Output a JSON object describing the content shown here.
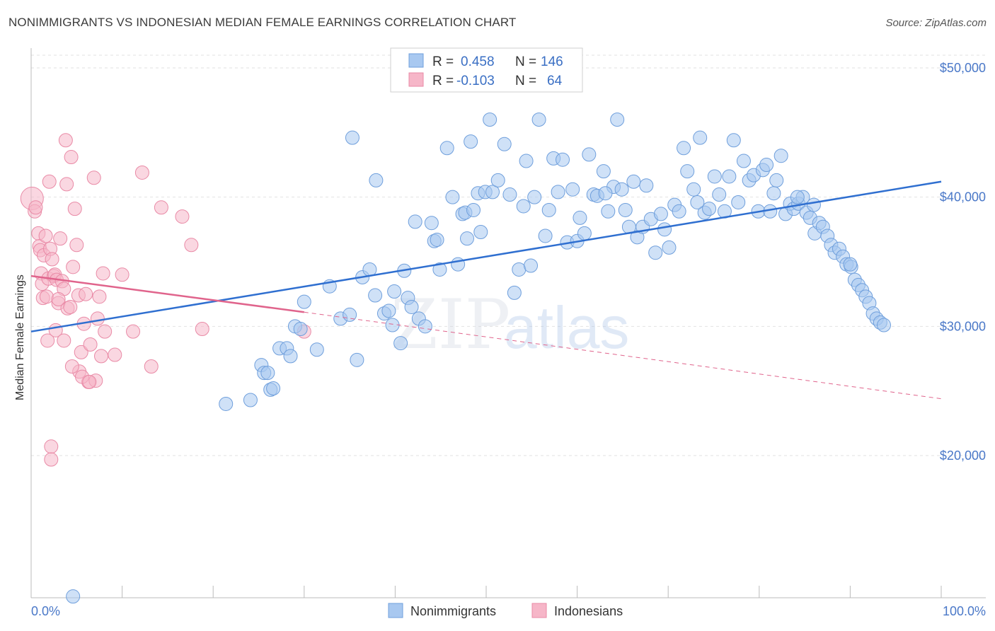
{
  "title": "NONIMMIGRANTS VS INDONESIAN MEDIAN FEMALE EARNINGS CORRELATION CHART",
  "source": "Source: ZipAtlas.com",
  "watermark": {
    "zip": "ZIP",
    "atlas": "atlas"
  },
  "legend": {
    "r_label": "R =",
    "n_label": "N =",
    "series": [
      {
        "r": "0.458",
        "n": "146",
        "color": "#a8c8f0"
      },
      {
        "r": "-0.103",
        "n": "64",
        "color": "#f6b6c8"
      }
    ]
  },
  "bottom_legend": [
    "Nonimmigrants",
    "Indonesians"
  ],
  "colors": {
    "blue_fill": "#a8c8f0",
    "blue_stroke": "#6f9fdc",
    "blue_line": "#2f6fd0",
    "pink_fill": "#f6b6c8",
    "pink_stroke": "#e98aa6",
    "pink_line": "#e0648c",
    "axis_text": "#4a78c8"
  },
  "chart_data": {
    "type": "scatter",
    "title": "NONIMMIGRANTS VS INDONESIAN MEDIAN FEMALE EARNINGS CORRELATION CHART",
    "xlabel": "",
    "ylabel": "Median Female Earnings",
    "xlim": [
      0,
      100
    ],
    "ylim": [
      9000,
      52000
    ],
    "x_tick_labels": [
      "0.0%",
      "100.0%"
    ],
    "y_ticks": [
      20000,
      30000,
      40000,
      50000
    ],
    "y_tick_labels": [
      "$20,000",
      "$30,000",
      "$40,000",
      "$50,000"
    ],
    "grid": true,
    "legend_placement": "top-center",
    "series": [
      {
        "name": "Nonimmigrants",
        "trend": {
          "x": [
            0,
            100
          ],
          "y": [
            29600,
            41200
          ],
          "dashed_from": null
        },
        "points": [
          [
            4.6,
            9100
          ],
          [
            21.4,
            24000
          ],
          [
            24.1,
            24300
          ],
          [
            25.3,
            27000
          ],
          [
            25.6,
            26400
          ],
          [
            26.0,
            26400
          ],
          [
            26.3,
            25100
          ],
          [
            26.6,
            25200
          ],
          [
            27.3,
            28300
          ],
          [
            28.1,
            28300
          ],
          [
            28.5,
            27700
          ],
          [
            29.0,
            30000
          ],
          [
            29.6,
            29800
          ],
          [
            30.0,
            31900
          ],
          [
            31.4,
            28200
          ],
          [
            32.8,
            33100
          ],
          [
            34.0,
            30600
          ],
          [
            35.0,
            30900
          ],
          [
            35.3,
            44600
          ],
          [
            35.8,
            27400
          ],
          [
            36.4,
            33800
          ],
          [
            37.2,
            34400
          ],
          [
            37.8,
            32400
          ],
          [
            37.9,
            41300
          ],
          [
            38.8,
            31000
          ],
          [
            39.3,
            31200
          ],
          [
            39.7,
            30100
          ],
          [
            39.9,
            32700
          ],
          [
            40.6,
            28700
          ],
          [
            41.0,
            34300
          ],
          [
            41.4,
            32200
          ],
          [
            41.8,
            31500
          ],
          [
            42.2,
            38100
          ],
          [
            42.6,
            30600
          ],
          [
            43.3,
            30000
          ],
          [
            44.3,
            36600
          ],
          [
            44.6,
            36700
          ],
          [
            44.9,
            34400
          ],
          [
            45.7,
            43800
          ],
          [
            46.3,
            40000
          ],
          [
            46.9,
            34800
          ],
          [
            47.4,
            38700
          ],
          [
            47.7,
            38800
          ],
          [
            48.3,
            44300
          ],
          [
            48.6,
            39000
          ],
          [
            49.1,
            40300
          ],
          [
            49.4,
            37300
          ],
          [
            49.9,
            40400
          ],
          [
            50.4,
            46000
          ],
          [
            50.7,
            40400
          ],
          [
            51.3,
            41300
          ],
          [
            52.0,
            44100
          ],
          [
            52.6,
            40200
          ],
          [
            53.1,
            32600
          ],
          [
            53.6,
            34400
          ],
          [
            54.1,
            39300
          ],
          [
            54.4,
            42800
          ],
          [
            54.9,
            34700
          ],
          [
            55.3,
            40000
          ],
          [
            55.8,
            46000
          ],
          [
            56.5,
            37000
          ],
          [
            56.9,
            39000
          ],
          [
            57.4,
            43000
          ],
          [
            57.9,
            40400
          ],
          [
            58.4,
            42900
          ],
          [
            58.9,
            36500
          ],
          [
            59.5,
            40600
          ],
          [
            60.0,
            36600
          ],
          [
            60.3,
            38400
          ],
          [
            60.8,
            37200
          ],
          [
            61.3,
            43300
          ],
          [
            61.8,
            40200
          ],
          [
            62.2,
            40100
          ],
          [
            62.9,
            42000
          ],
          [
            63.4,
            38900
          ],
          [
            64.0,
            40800
          ],
          [
            64.4,
            46000
          ],
          [
            64.9,
            40600
          ],
          [
            65.3,
            39000
          ],
          [
            65.7,
            37700
          ],
          [
            66.2,
            41200
          ],
          [
            66.6,
            36900
          ],
          [
            67.2,
            37700
          ],
          [
            67.6,
            40900
          ],
          [
            68.1,
            38300
          ],
          [
            68.6,
            35700
          ],
          [
            69.2,
            38700
          ],
          [
            69.6,
            37500
          ],
          [
            70.1,
            36100
          ],
          [
            70.7,
            39400
          ],
          [
            71.2,
            38900
          ],
          [
            71.7,
            43800
          ],
          [
            72.1,
            42000
          ],
          [
            72.8,
            40600
          ],
          [
            73.5,
            44600
          ],
          [
            74.0,
            38800
          ],
          [
            74.5,
            39100
          ],
          [
            75.1,
            41600
          ],
          [
            75.6,
            40200
          ],
          [
            76.2,
            38900
          ],
          [
            76.7,
            41600
          ],
          [
            77.2,
            44400
          ],
          [
            77.7,
            39600
          ],
          [
            78.3,
            42800
          ],
          [
            78.9,
            41300
          ],
          [
            79.4,
            41700
          ],
          [
            79.9,
            38900
          ],
          [
            80.4,
            42100
          ],
          [
            80.8,
            42500
          ],
          [
            81.2,
            38900
          ],
          [
            81.6,
            40300
          ],
          [
            81.9,
            41300
          ],
          [
            82.4,
            43200
          ],
          [
            82.9,
            38700
          ],
          [
            83.4,
            39500
          ],
          [
            83.8,
            39100
          ],
          [
            84.3,
            39500
          ],
          [
            84.8,
            40000
          ],
          [
            85.2,
            38800
          ],
          [
            85.6,
            38400
          ],
          [
            86.1,
            37200
          ],
          [
            86.6,
            38000
          ],
          [
            87.0,
            37700
          ],
          [
            87.5,
            37000
          ],
          [
            87.9,
            36300
          ],
          [
            88.3,
            35700
          ],
          [
            88.8,
            36000
          ],
          [
            89.2,
            35400
          ],
          [
            89.6,
            34800
          ],
          [
            90.1,
            34600
          ],
          [
            90.5,
            33600
          ],
          [
            90.9,
            33200
          ],
          [
            91.3,
            32800
          ],
          [
            91.7,
            32300
          ],
          [
            92.1,
            31800
          ],
          [
            92.5,
            31000
          ],
          [
            92.9,
            30600
          ],
          [
            93.3,
            30300
          ],
          [
            93.7,
            30100
          ],
          [
            90.0,
            34800
          ],
          [
            86.0,
            39400
          ],
          [
            84.2,
            40000
          ],
          [
            73.2,
            39600
          ],
          [
            63.1,
            40300
          ],
          [
            44.0,
            38000
          ],
          [
            47.9,
            36800
          ]
        ]
      },
      {
        "name": "Indonesians",
        "trend": {
          "x": [
            0,
            30
          ],
          "y": [
            33900,
            31100
          ],
          "dashed_from": 30,
          "dashed_to": {
            "x": 100,
            "y": 24400
          }
        },
        "points": [
          [
            0.1,
            39900
          ],
          [
            0.4,
            38900
          ],
          [
            0.5,
            39200
          ],
          [
            0.8,
            37200
          ],
          [
            0.9,
            36200
          ],
          [
            1.0,
            35900
          ],
          [
            1.1,
            34100
          ],
          [
            1.2,
            33300
          ],
          [
            1.3,
            32200
          ],
          [
            1.4,
            35500
          ],
          [
            1.6,
            37000
          ],
          [
            1.7,
            32300
          ],
          [
            1.8,
            28900
          ],
          [
            1.9,
            33700
          ],
          [
            2.0,
            41200
          ],
          [
            2.1,
            36000
          ],
          [
            2.3,
            35200
          ],
          [
            2.5,
            33900
          ],
          [
            2.6,
            34000
          ],
          [
            2.7,
            29700
          ],
          [
            2.8,
            33600
          ],
          [
            3.0,
            31800
          ],
          [
            3.2,
            36800
          ],
          [
            3.4,
            33500
          ],
          [
            3.6,
            32900
          ],
          [
            3.8,
            44400
          ],
          [
            3.9,
            41000
          ],
          [
            4.0,
            31400
          ],
          [
            4.3,
            31500
          ],
          [
            4.4,
            43100
          ],
          [
            4.6,
            34600
          ],
          [
            4.8,
            39100
          ],
          [
            5.0,
            36300
          ],
          [
            5.2,
            32400
          ],
          [
            5.5,
            28000
          ],
          [
            5.8,
            30200
          ],
          [
            6.0,
            32500
          ],
          [
            6.3,
            25700
          ],
          [
            6.5,
            28600
          ],
          [
            6.9,
            41500
          ],
          [
            7.1,
            25800
          ],
          [
            7.3,
            30600
          ],
          [
            7.5,
            32300
          ],
          [
            7.7,
            27700
          ],
          [
            7.9,
            34100
          ],
          [
            8.1,
            29600
          ],
          [
            10.0,
            34000
          ],
          [
            11.2,
            29600
          ],
          [
            12.2,
            41900
          ],
          [
            13.2,
            26900
          ],
          [
            14.3,
            39200
          ],
          [
            16.6,
            38500
          ],
          [
            17.6,
            36300
          ],
          [
            18.8,
            29800
          ],
          [
            3.0,
            32100
          ],
          [
            2.2,
            20700
          ],
          [
            2.2,
            19700
          ],
          [
            5.3,
            26500
          ],
          [
            5.6,
            26100
          ],
          [
            6.4,
            25700
          ],
          [
            3.6,
            28900
          ],
          [
            4.5,
            26900
          ],
          [
            9.2,
            27800
          ],
          [
            30.0,
            29600
          ]
        ]
      }
    ]
  }
}
